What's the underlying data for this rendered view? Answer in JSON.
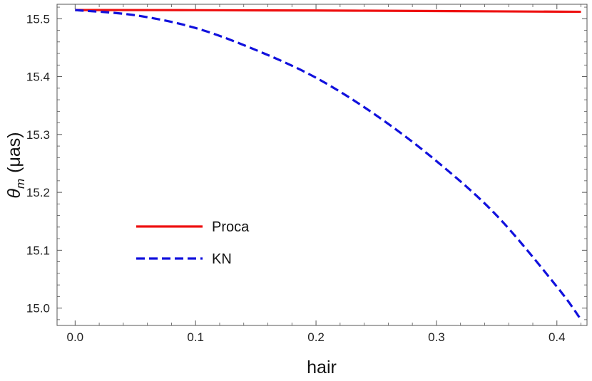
{
  "chart_data": {
    "type": "line",
    "title": "",
    "xlabel": "hair",
    "ylabel": "θ_m (μas)",
    "ylabel_parts": {
      "symbol": "θ",
      "subscript": "m",
      "unit": "(μas)"
    },
    "xlim": [
      -0.015,
      0.425
    ],
    "ylim": [
      14.97,
      15.525
    ],
    "x_ticks": [
      0.0,
      0.1,
      0.2,
      0.3,
      0.4
    ],
    "x_tick_labels": [
      "0.0",
      "0.1",
      "0.2",
      "0.3",
      "0.4"
    ],
    "y_ticks": [
      15.0,
      15.1,
      15.2,
      15.3,
      15.4,
      15.5
    ],
    "y_tick_labels": [
      "15.0",
      "15.1",
      "15.2",
      "15.3",
      "15.4",
      "15.5"
    ],
    "grid": false,
    "legend_position": "lower-left",
    "series": [
      {
        "name": "Proca",
        "color": "#ee1111",
        "style": "solid",
        "x": [
          0.0,
          0.1,
          0.2,
          0.3,
          0.42
        ],
        "y": [
          15.515,
          15.5148,
          15.5142,
          15.5133,
          15.512
        ]
      },
      {
        "name": "KN",
        "color": "#1111dd",
        "style": "dashed",
        "x": [
          0.0,
          0.05,
          0.1,
          0.15,
          0.2,
          0.25,
          0.3,
          0.35,
          0.4,
          0.42
        ],
        "y": [
          15.515,
          15.506,
          15.484,
          15.446,
          15.398,
          15.333,
          15.254,
          15.16,
          15.037,
          14.98
        ]
      }
    ]
  }
}
